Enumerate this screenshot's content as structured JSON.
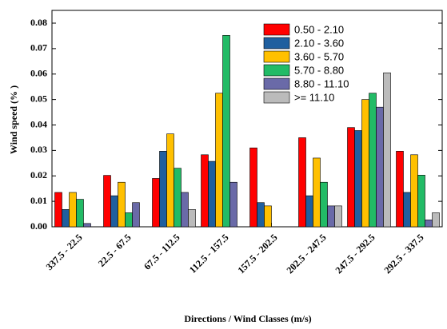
{
  "chart_data": {
    "type": "bar",
    "y_label": "Wind speed (% )",
    "x_label": "Directions / Wind Classes (m/s)",
    "categories": [
      "337.5 - 22.5",
      "22.5 - 67.5",
      "67.5 - 112.5",
      "112.5 - 157.5",
      "157.5 - 202.5",
      "202.5 - 247.5",
      "247.5 - 292.5",
      "292.5 - 337.5"
    ],
    "series": [
      {
        "name": "0.50 - 2.10",
        "color": "#ff0000",
        "values": [
          0.0135,
          0.0202,
          0.019,
          0.0283,
          0.031,
          0.035,
          0.039,
          0.0297
        ]
      },
      {
        "name": "2.10 - 3.60",
        "color": "#1f5f9f",
        "values": [
          0.0068,
          0.0122,
          0.0297,
          0.0257,
          0.0095,
          0.0122,
          0.0378,
          0.0135
        ]
      },
      {
        "name": "3.60 - 5.70",
        "color": "#ffc000",
        "values": [
          0.0135,
          0.0175,
          0.0365,
          0.0525,
          0.0082,
          0.027,
          0.05,
          0.0283
        ]
      },
      {
        "name": "5.70 - 8.80",
        "color": "#22bb66",
        "values": [
          0.0108,
          0.0055,
          0.023,
          0.0752,
          null,
          0.0175,
          0.0525,
          0.0203
        ]
      },
      {
        "name": "8.80 - 11.10",
        "color": "#6a6aa8",
        "values": [
          0.0013,
          0.0095,
          0.0135,
          0.0175,
          null,
          0.0082,
          0.047,
          0.0027
        ]
      },
      {
        "name": ">= 11.10",
        "color": "#bbbbbb",
        "values": [
          null,
          null,
          0.0068,
          null,
          null,
          0.0082,
          0.0605,
          0.0055
        ]
      }
    ],
    "ylim": [
      0,
      0.08
    ],
    "yticks": [
      {
        "value": 0,
        "label": "0.00"
      },
      {
        "value": 0.01,
        "label": "0.01"
      },
      {
        "value": 0.02,
        "label": "0.02"
      },
      {
        "value": 0.03,
        "label": "0.03"
      },
      {
        "value": 0.04,
        "label": "0.04"
      },
      {
        "value": 0.05,
        "label": "0.05"
      },
      {
        "value": 0.06,
        "label": "0.06"
      },
      {
        "value": 0.07,
        "label": "0.07"
      },
      {
        "value": 0.08,
        "label": "0.08"
      }
    ],
    "legend": "top-right"
  }
}
